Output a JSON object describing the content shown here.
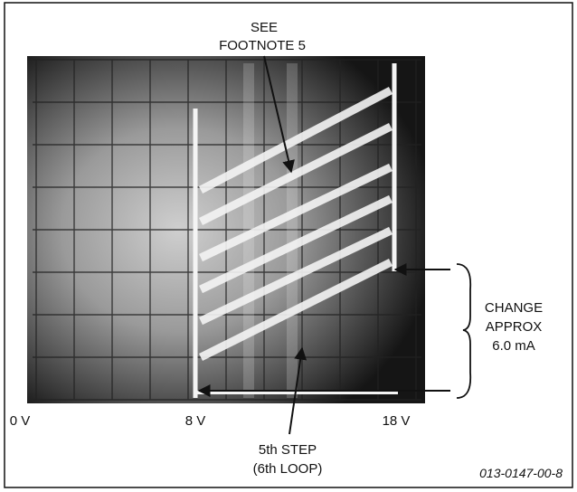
{
  "annotations": {
    "footnote": [
      "SEE",
      "FOOTNOTE 5"
    ],
    "change": [
      "CHANGE",
      "APPROX",
      "6.0 mA"
    ],
    "step": [
      "5th STEP",
      "(6th LOOP)"
    ]
  },
  "axis_labels": [
    "0 V",
    "8 V",
    "18 V"
  ],
  "figure_id": "013-0147-00-8"
}
